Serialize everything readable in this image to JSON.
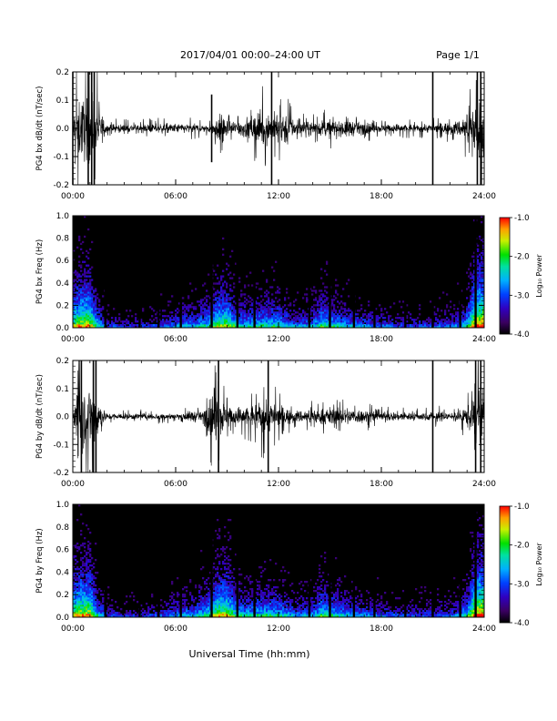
{
  "header": {
    "title": "2017/04/01  00:00–24:00 UT",
    "page": "Page 1/1"
  },
  "footer": {
    "xlabel": "Universal Time (hh:mm)"
  },
  "chart_data": [
    {
      "type": "line",
      "ylabel": "PG4 bx dB/dt (nT/sec)",
      "xlim": [
        0,
        24
      ],
      "ylim": [
        -0.2,
        0.2
      ],
      "xticks": [
        "00:00",
        "06:00",
        "12:00",
        "18:00",
        "24:00"
      ],
      "yticks": [
        "-0.2",
        "-0.1",
        "0.0",
        "0.1",
        "0.2"
      ],
      "x_units": "hours UT",
      "envelope": {
        "hours": [
          0,
          0.2,
          0.5,
          1,
          1.3,
          1.6,
          2,
          3,
          4,
          5,
          6,
          6.5,
          7,
          7.5,
          8,
          8.3,
          8.7,
          9,
          9.5,
          10,
          10.5,
          11,
          11.5,
          12,
          12.5,
          13,
          14,
          14.5,
          15,
          15.5,
          16,
          16.5,
          17,
          18,
          19,
          20,
          21,
          22,
          22.5,
          23,
          23.3,
          23.6,
          24
        ],
        "amplitude": [
          0.06,
          0.2,
          0.2,
          0.2,
          0.2,
          0.1,
          0.03,
          0.025,
          0.025,
          0.03,
          0.03,
          0.03,
          0.03,
          0.025,
          0.03,
          0.07,
          0.09,
          0.06,
          0.05,
          0.06,
          0.08,
          0.12,
          0.1,
          0.1,
          0.11,
          0.04,
          0.045,
          0.05,
          0.06,
          0.04,
          0.07,
          0.04,
          0.04,
          0.025,
          0.03,
          0.025,
          0.03,
          0.04,
          0.05,
          0.1,
          0.12,
          0.2,
          0.2
        ]
      },
      "spikes": [
        {
          "hour": 0.0,
          "amplitude": 0.2
        },
        {
          "hour": 0.9,
          "amplitude": 0.2
        },
        {
          "hour": 1.1,
          "amplitude": 0.2
        },
        {
          "hour": 1.25,
          "amplitude": 0.2
        },
        {
          "hour": 8.1,
          "amplitude": 0.12
        },
        {
          "hour": 11.6,
          "amplitude": 0.2
        },
        {
          "hour": 21.0,
          "amplitude": 0.2
        },
        {
          "hour": 23.6,
          "amplitude": 0.2
        },
        {
          "hour": 23.8,
          "amplitude": 0.2
        }
      ]
    },
    {
      "type": "heatmap",
      "ylabel": "PG4 bx Freq (Hz)",
      "xlim": [
        0,
        24
      ],
      "ylim": [
        0.0,
        1.0
      ],
      "xticks": [
        "00:00",
        "06:00",
        "12:00",
        "18:00",
        "24:00"
      ],
      "yticks": [
        "0.0",
        "0.2",
        "0.4",
        "0.6",
        "0.8",
        "1.0"
      ],
      "colorbar": {
        "label": "Log₁₀ Power",
        "range": [
          -4.0,
          -1.0
        ],
        "ticks": [
          "-1.0",
          "-2.0",
          "-3.0",
          "-4.0"
        ]
      },
      "activity": {
        "hours": [
          0,
          0.5,
          1,
          1.5,
          2,
          3,
          4,
          5,
          6,
          6.5,
          7,
          8,
          8.5,
          9,
          9.5,
          10,
          11,
          12,
          13,
          14,
          14.5,
          15,
          16,
          17,
          18,
          19,
          20,
          21,
          22,
          22.5,
          23,
          23.5,
          24
        ],
        "level": [
          0.7,
          0.8,
          0.8,
          0.5,
          0.3,
          0.25,
          0.25,
          0.3,
          0.4,
          0.45,
          0.45,
          0.55,
          0.7,
          0.7,
          0.55,
          0.5,
          0.55,
          0.55,
          0.4,
          0.45,
          0.6,
          0.55,
          0.45,
          0.4,
          0.35,
          0.3,
          0.3,
          0.3,
          0.35,
          0.4,
          0.55,
          0.9,
          0.9
        ]
      },
      "gaps_hours": [
        1.9,
        3.9,
        5.0,
        6.3,
        8.1,
        9.6,
        10.6,
        13.8,
        15.0,
        16.4,
        17.6,
        19.4,
        21.0,
        22.6,
        23.5
      ]
    },
    {
      "type": "line",
      "ylabel": "PG4 by dB/dt (nT/sec)",
      "xlim": [
        0,
        24
      ],
      "ylim": [
        -0.2,
        0.2
      ],
      "xticks": [
        "00:00",
        "06:00",
        "12:00",
        "18:00",
        "24:00"
      ],
      "yticks": [
        "-0.2",
        "-0.1",
        "0.0",
        "0.1",
        "0.2"
      ],
      "x_units": "hours UT",
      "envelope": {
        "hours": [
          0,
          0.2,
          0.5,
          1,
          1.3,
          1.6,
          2,
          3,
          4,
          5,
          6,
          6.5,
          7,
          7.5,
          8,
          8.3,
          8.7,
          9,
          9.5,
          10,
          10.5,
          11,
          11.5,
          12,
          12.5,
          13,
          14,
          14.5,
          15,
          15.5,
          16,
          16.5,
          17,
          18,
          19,
          20,
          21,
          22,
          22.5,
          23,
          23.3,
          23.6,
          24
        ],
        "amplitude": [
          0.06,
          0.2,
          0.2,
          0.2,
          0.2,
          0.08,
          0.02,
          0.02,
          0.02,
          0.02,
          0.02,
          0.025,
          0.04,
          0.025,
          0.12,
          0.2,
          0.12,
          0.07,
          0.06,
          0.07,
          0.07,
          0.12,
          0.1,
          0.08,
          0.05,
          0.04,
          0.045,
          0.05,
          0.06,
          0.045,
          0.06,
          0.045,
          0.045,
          0.03,
          0.03,
          0.025,
          0.03,
          0.03,
          0.035,
          0.07,
          0.1,
          0.2,
          0.2
        ]
      },
      "spikes": [
        {
          "hour": 0.5,
          "amplitude": 0.2
        },
        {
          "hour": 1.2,
          "amplitude": 0.2
        },
        {
          "hour": 1.35,
          "amplitude": 0.2
        },
        {
          "hour": 8.5,
          "amplitude": 0.2
        },
        {
          "hour": 11.4,
          "amplitude": 0.2
        },
        {
          "hour": 21.0,
          "amplitude": 0.2
        },
        {
          "hour": 23.5,
          "amplitude": 0.2
        },
        {
          "hour": 23.8,
          "amplitude": 0.2
        }
      ]
    },
    {
      "type": "heatmap",
      "ylabel": "PG4 by Freq (Hz)",
      "xlim": [
        0,
        24
      ],
      "ylim": [
        0.0,
        1.0
      ],
      "xticks": [
        "00:00",
        "06:00",
        "12:00",
        "18:00",
        "24:00"
      ],
      "yticks": [
        "0.0",
        "0.2",
        "0.4",
        "0.6",
        "0.8",
        "1.0"
      ],
      "colorbar": {
        "label": "Log₁₀ Power",
        "range": [
          -4.0,
          -1.0
        ],
        "ticks": [
          "-1.0",
          "-2.0",
          "-3.0",
          "-4.0"
        ]
      },
      "activity": {
        "hours": [
          0,
          0.5,
          1,
          1.5,
          2,
          3,
          4,
          5,
          6,
          6.5,
          7,
          8,
          8.5,
          9,
          9.5,
          10,
          11,
          12,
          13,
          14,
          14.5,
          15,
          16,
          17,
          18,
          19,
          20,
          21,
          22,
          22.5,
          23,
          23.5,
          24
        ],
        "level": [
          0.75,
          0.8,
          0.8,
          0.5,
          0.3,
          0.25,
          0.25,
          0.3,
          0.4,
          0.45,
          0.45,
          0.6,
          0.75,
          0.75,
          0.6,
          0.5,
          0.55,
          0.55,
          0.4,
          0.45,
          0.6,
          0.55,
          0.45,
          0.4,
          0.35,
          0.3,
          0.3,
          0.3,
          0.35,
          0.4,
          0.55,
          0.9,
          0.9
        ]
      },
      "gaps_hours": [
        1.9,
        3.9,
        5.0,
        6.3,
        8.1,
        9.6,
        10.6,
        13.8,
        15.0,
        16.4,
        17.6,
        19.4,
        21.0,
        22.6,
        23.5
      ]
    }
  ],
  "colors": {
    "trace": "#000000",
    "background": "#ffffff"
  }
}
